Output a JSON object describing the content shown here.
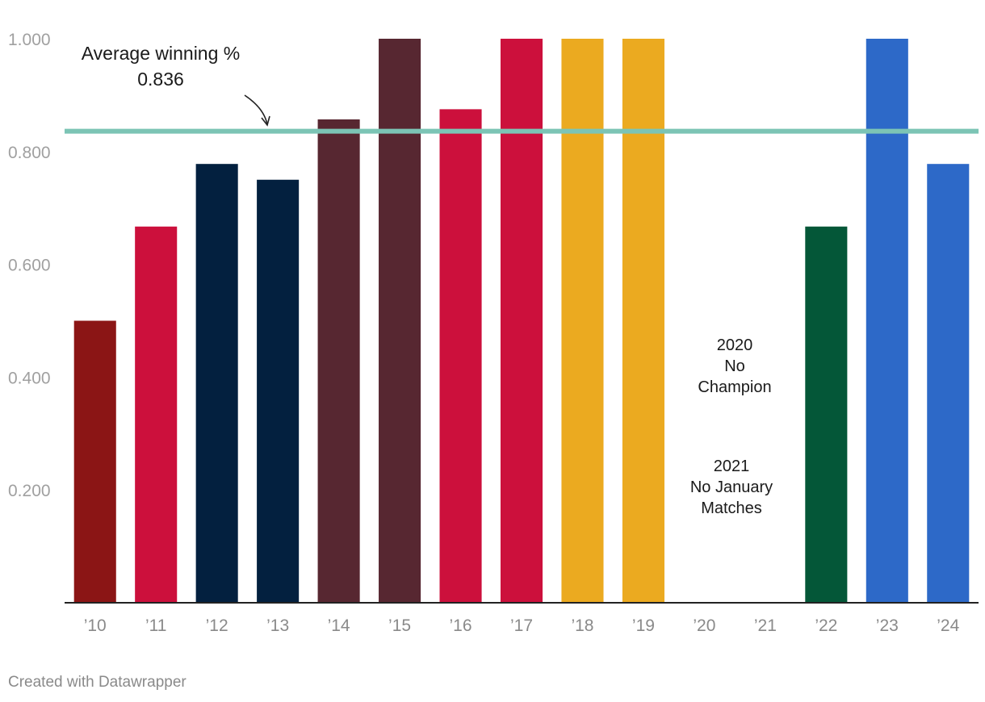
{
  "chart_data": {
    "type": "bar",
    "categories": [
      "’10",
      "’11",
      "’12",
      "’13",
      "’14",
      "’15",
      "’16",
      "’17",
      "’18",
      "’19",
      "’20",
      "’21",
      "’22",
      "’23",
      "’24"
    ],
    "values": [
      0.5,
      0.667,
      0.778,
      0.75,
      0.857,
      1.0,
      0.875,
      1.0,
      1.0,
      1.0,
      null,
      null,
      0.667,
      1.0,
      0.778
    ],
    "colors": [
      "#8b1515",
      "#cc103c",
      "#03203f",
      "#03203f",
      "#572731",
      "#572731",
      "#cc103c",
      "#cc103c",
      "#ebaa20",
      "#ebaa20",
      null,
      null,
      "#045738",
      "#2d69c8",
      "#2d69c8"
    ],
    "ylim": [
      0,
      1.0
    ],
    "y_ticks": [
      0.2,
      0.4,
      0.6,
      0.8,
      1.0
    ],
    "y_tick_labels": [
      "0.200",
      "0.400",
      "0.600",
      "0.800",
      "1.000"
    ],
    "grid": false,
    "reference_line": {
      "value": 0.836,
      "color": "#7cc4b5"
    },
    "annotations": {
      "average_label": "Average winning %",
      "average_value": "0.836",
      "note_2020": [
        "2020",
        "No",
        "Champion"
      ],
      "note_2021": [
        "2021",
        "No January",
        "Matches"
      ]
    }
  },
  "credit": "Created with Datawrapper"
}
